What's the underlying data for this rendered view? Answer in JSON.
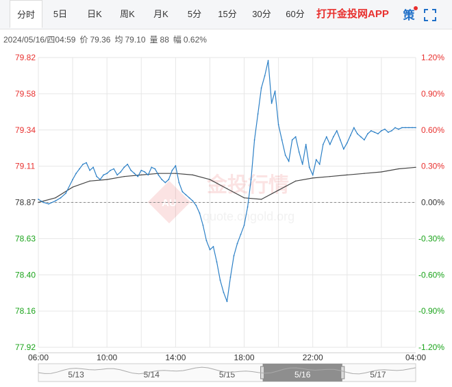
{
  "tabs": [
    {
      "label": "分时",
      "active": true
    },
    {
      "label": "5日"
    },
    {
      "label": "日K"
    },
    {
      "label": "周K"
    },
    {
      "label": "月K"
    },
    {
      "label": "5分"
    },
    {
      "label": "15分"
    },
    {
      "label": "30分"
    },
    {
      "label": "60分"
    }
  ],
  "promo_label": "打开金投网APP",
  "strategy_icon_text": "策",
  "fullscreen_icon": "fullscreen-icon",
  "info": {
    "datetime": "2024/05/16/四04:59",
    "price_label": "价",
    "price": "79.36",
    "avg_label": "均",
    "avg": "79.10",
    "volume_label": "量",
    "volume": "88",
    "amplitude_label": "幅",
    "amplitude": "0.62%"
  },
  "watermark": {
    "brand": "金投行情",
    "logo_text": "AU",
    "url": "quote.cngold.org"
  },
  "colors": {
    "up": "#e8302e",
    "down": "#1aa31a",
    "price_line": "#2a7fc6",
    "avg_line": "#444444",
    "grid": "#e6e6e6",
    "accent_tab_bg": "#ffffff"
  },
  "chart_data": {
    "type": "line",
    "title": "",
    "xlabel": "",
    "ylabel": "",
    "reference_price": 78.87,
    "ylim": [
      77.92,
      79.82
    ],
    "left_ticks": [
      "79.82",
      "79.58",
      "79.34",
      "79.11",
      "78.87",
      "78.63",
      "78.40",
      "78.16",
      "77.92"
    ],
    "right_ticks": [
      "1.20%",
      "0.90%",
      "0.60%",
      "0.30%",
      "0.00%",
      "-0.30%",
      "-0.60%",
      "-0.90%",
      "-1.20%"
    ],
    "x_ticks": [
      "06:00",
      "10:00",
      "14:00",
      "18:00",
      "22:00",
      "04:00"
    ],
    "x_tick_hours": [
      0,
      4,
      8,
      12,
      16,
      22
    ],
    "xlim_hours": [
      0,
      22
    ],
    "series": [
      {
        "name": "",
        "role": "price",
        "x": [
          0,
          0.3,
          0.6,
          1.0,
          1.3,
          1.6,
          2.0,
          2.2,
          2.4,
          2.6,
          2.8,
          3.0,
          3.2,
          3.4,
          3.6,
          3.8,
          4.0,
          4.2,
          4.4,
          4.6,
          4.8,
          5.0,
          5.2,
          5.4,
          5.6,
          5.8,
          6.0,
          6.2,
          6.4,
          6.6,
          6.8,
          7.0,
          7.2,
          7.4,
          7.6,
          7.8,
          8.0,
          8.2,
          8.4,
          8.6,
          8.8,
          9.0,
          9.2,
          9.4,
          9.6,
          9.8,
          10.0,
          10.2,
          10.4,
          10.6,
          10.8,
          11.0,
          11.2,
          11.4,
          11.6,
          11.8,
          12.0,
          12.2,
          12.4,
          12.6,
          12.8,
          13.0,
          13.2,
          13.4,
          13.6,
          13.8,
          14.0,
          14.2,
          14.4,
          14.6,
          14.8,
          15.0,
          15.2,
          15.4,
          15.6,
          15.8,
          16.0,
          16.2,
          16.4,
          16.6,
          16.8,
          17.0,
          17.2,
          17.4,
          17.6,
          17.8,
          18.0,
          18.2,
          18.4,
          18.6,
          18.8,
          19.0,
          19.2,
          19.4,
          19.6,
          19.8,
          20.0,
          20.2,
          20.4,
          20.6,
          20.8,
          21.0,
          21.2,
          21.4,
          21.6,
          21.8,
          22.0
        ],
        "values": [
          78.89,
          78.87,
          78.86,
          78.88,
          78.9,
          78.93,
          79.02,
          79.06,
          79.09,
          79.12,
          79.13,
          79.08,
          79.1,
          79.04,
          79.02,
          79.05,
          79.06,
          79.08,
          79.09,
          79.05,
          79.07,
          79.1,
          79.12,
          79.08,
          79.06,
          79.04,
          79.08,
          79.07,
          79.05,
          79.1,
          79.09,
          79.05,
          79.02,
          79.0,
          79.02,
          79.08,
          79.11,
          79.0,
          78.94,
          78.92,
          78.9,
          78.88,
          78.85,
          78.8,
          78.72,
          78.62,
          78.56,
          78.58,
          78.48,
          78.36,
          78.28,
          78.22,
          78.38,
          78.52,
          78.6,
          78.66,
          78.72,
          78.84,
          79.02,
          79.28,
          79.45,
          79.62,
          79.7,
          79.8,
          79.52,
          79.6,
          79.38,
          79.28,
          79.18,
          79.14,
          79.28,
          79.3,
          79.2,
          79.12,
          79.25,
          79.1,
          79.05,
          79.15,
          79.12,
          79.25,
          79.3,
          79.25,
          79.3,
          79.34,
          79.28,
          79.22,
          79.26,
          79.31,
          79.36,
          79.32,
          79.3,
          79.28,
          79.32,
          79.34,
          79.33,
          79.32,
          79.34,
          79.35,
          79.33,
          79.34,
          79.36,
          79.35,
          79.36,
          79.36,
          79.36,
          79.36,
          79.36
        ]
      },
      {
        "name": "",
        "role": "average",
        "x": [
          0,
          1,
          2,
          3,
          4,
          5,
          6,
          7,
          8,
          9,
          10,
          11,
          12,
          13,
          14,
          15,
          16,
          17,
          18,
          19,
          20,
          21,
          22
        ],
        "values": [
          78.87,
          78.9,
          78.97,
          79.01,
          79.02,
          79.04,
          79.05,
          79.06,
          79.06,
          79.05,
          79.02,
          78.96,
          78.9,
          78.89,
          78.95,
          79.01,
          79.03,
          79.04,
          79.05,
          79.06,
          79.07,
          79.09,
          79.1
        ]
      }
    ],
    "navigator": {
      "labels": [
        "5/13",
        "5/14",
        "5/15",
        "5/16",
        "5/17"
      ],
      "selected": "5/16"
    }
  }
}
